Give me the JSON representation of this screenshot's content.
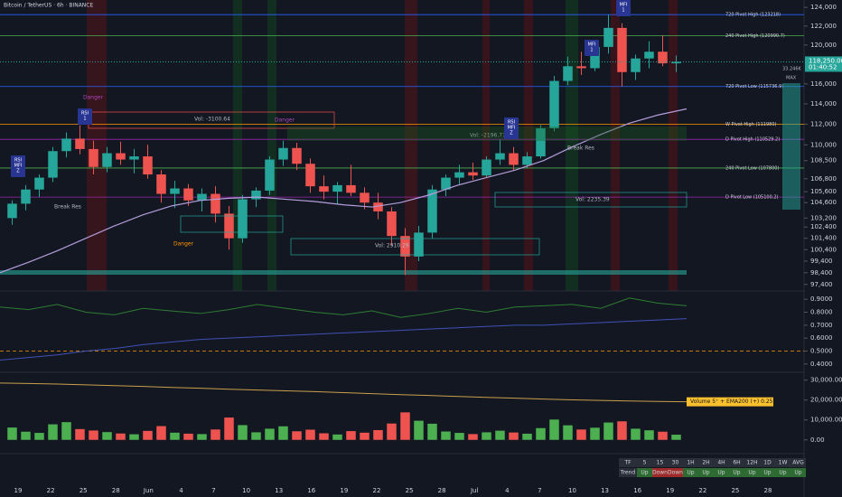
{
  "chart_data": {
    "type": "candlestick",
    "title": "Bitcoin / TetherUS · 6h · BINANCE",
    "log_scale": true,
    "ylim": [
      97000,
      124800
    ],
    "yticks": [
      {
        "value": 124000,
        "label": "124,000"
      },
      {
        "value": 122000,
        "label": "122,000"
      },
      {
        "value": 120000,
        "label": "120,000"
      },
      {
        "value": 116000,
        "label": "116,000"
      },
      {
        "value": 114000,
        "label": "114,000"
      },
      {
        "value": 112000,
        "label": "112,000"
      },
      {
        "value": 110000,
        "label": "110,000"
      },
      {
        "value": 108500,
        "label": "108,500"
      },
      {
        "value": 106800,
        "label": "106,800"
      },
      {
        "value": 105600,
        "label": "105,600"
      },
      {
        "value": 104600,
        "label": "104,600"
      },
      {
        "value": 103200,
        "label": "103,200"
      },
      {
        "value": 102400,
        "label": "102,400"
      },
      {
        "value": 101400,
        "label": "101,400"
      },
      {
        "value": 100400,
        "label": "100,400"
      },
      {
        "value": 99400,
        "label": "99,400"
      },
      {
        "value": 98400,
        "label": "98,400"
      },
      {
        "value": 97400,
        "label": "97,400"
      }
    ],
    "up_color": "#26a69a",
    "down_color": "#ef5350",
    "candles": [
      [
        103200,
        104800,
        102600,
        104500
      ],
      [
        104500,
        106200,
        103900,
        105800
      ],
      [
        105800,
        107200,
        105100,
        106900
      ],
      [
        106900,
        109800,
        106500,
        109400
      ],
      [
        109400,
        111200,
        108800,
        110600
      ],
      [
        110600,
        111900,
        109100,
        109600
      ],
      [
        109600,
        110400,
        107200,
        107900
      ],
      [
        107900,
        109800,
        107400,
        109200
      ],
      [
        109200,
        110300,
        108100,
        108600
      ],
      [
        108600,
        109600,
        107300,
        108900
      ],
      [
        108900,
        110000,
        106800,
        107200
      ],
      [
        107200,
        107600,
        104600,
        105400
      ],
      [
        105400,
        106600,
        104100,
        105900
      ],
      [
        105900,
        106300,
        104300,
        104800
      ],
      [
        104800,
        105900,
        103800,
        105400
      ],
      [
        105400,
        106100,
        102800,
        103600
      ],
      [
        103600,
        104300,
        100400,
        101400
      ],
      [
        101400,
        105300,
        101000,
        104900
      ],
      [
        104900,
        106000,
        104200,
        105700
      ],
      [
        105700,
        108900,
        105300,
        108600
      ],
      [
        108600,
        110400,
        108000,
        109700
      ],
      [
        109700,
        110200,
        107600,
        108200
      ],
      [
        108200,
        108700,
        105500,
        106100
      ],
      [
        106100,
        107100,
        104900,
        105600
      ],
      [
        105600,
        106500,
        104500,
        106200
      ],
      [
        106200,
        108100,
        105200,
        105500
      ],
      [
        105500,
        106000,
        104000,
        104600
      ],
      [
        104600,
        105500,
        103100,
        103800
      ],
      [
        103800,
        104200,
        100800,
        101600
      ],
      [
        101600,
        102300,
        98200,
        99800
      ],
      [
        99800,
        102500,
        99400,
        101900
      ],
      [
        101900,
        106200,
        101400,
        105800
      ],
      [
        105800,
        107200,
        105200,
        106900
      ],
      [
        106900,
        108100,
        106300,
        107400
      ],
      [
        107400,
        108300,
        106700,
        107100
      ],
      [
        107100,
        108900,
        106900,
        108600
      ],
      [
        108600,
        110500,
        108100,
        109200
      ],
      [
        109200,
        109800,
        107600,
        108100
      ],
      [
        108100,
        109300,
        107800,
        108900
      ],
      [
        108900,
        111900,
        108700,
        111600
      ],
      [
        111600,
        116800,
        111300,
        116300
      ],
      [
        116300,
        118800,
        115900,
        117800
      ],
      [
        117800,
        119300,
        116900,
        117600
      ],
      [
        117600,
        120500,
        117300,
        119800
      ],
      [
        119800,
        123218,
        119100,
        121800
      ],
      [
        121800,
        122300,
        115736,
        117200
      ],
      [
        117200,
        119000,
        116400,
        118600
      ],
      [
        118600,
        120400,
        117600,
        119300
      ],
      [
        119300,
        120990,
        117800,
        118100
      ],
      [
        118100,
        118900,
        117200,
        118250
      ]
    ],
    "overlay_line": {
      "color": "#b39ddb",
      "values": [
        98400,
        99300,
        100300,
        101400,
        102500,
        103500,
        104300,
        104800,
        105000,
        105100,
        104900,
        104700,
        104400,
        104200,
        104600,
        105300,
        106200,
        106900,
        107600,
        108500,
        109800,
        111000,
        112100,
        112900,
        113500
      ]
    },
    "levels": [
      {
        "label": "720 Pivot High (123218)",
        "value": 123218,
        "color": "#2962ff"
      },
      {
        "label": "240 Pivot High (120990.7)",
        "value": 120990.7,
        "color": "#4caf50"
      },
      {
        "label": "720 Pivot Low (115736.9)",
        "value": 115736.9,
        "color": "#2962ff"
      },
      {
        "label": "W Pivot High (111980)",
        "value": 111980,
        "color": "#ff9800"
      },
      {
        "label": "D Pivot High (110529.2)",
        "value": 110529.2,
        "color": "#9c27b0"
      },
      {
        "label": "240 Pivot Low (107800)",
        "value": 107800,
        "color": "#4caf50"
      },
      {
        "label": "D Pivot Low (105100.2)",
        "value": 105100.2,
        "color": "#9c27b0"
      }
    ],
    "last_price": {
      "value": 118250,
      "label": "118,250.00"
    },
    "countdown": "01:40:52",
    "side_labels": [
      "33.246K",
      "MAX"
    ],
    "annotations": [
      "Danger",
      "Danger",
      "Danger",
      "Vol: -3100.64",
      "Vol: -2196.77",
      "Vol: 2235.39",
      "Vol: 2910.29",
      "Break Res",
      "Break Res"
    ],
    "badges": [
      [
        "RSI",
        "MFI",
        "Z"
      ],
      [
        "RSI",
        "1"
      ],
      [
        "RSI",
        "MFI",
        "Z"
      ],
      [
        "MFI",
        "1"
      ],
      [
        "MFI",
        "1"
      ]
    ],
    "oscillator": {
      "ylim": [
        0.35,
        0.95
      ],
      "yticks": [
        {
          "value": 0.9,
          "label": "0.9000"
        },
        {
          "value": 0.8,
          "label": "0.8000"
        },
        {
          "value": 0.7,
          "label": "0.7000"
        },
        {
          "value": 0.6,
          "label": "0.6000"
        },
        {
          "value": 0.5,
          "label": "0.5000"
        },
        {
          "value": 0.4,
          "label": "0.4000"
        }
      ],
      "series": [
        {
          "color": "#2e7d32",
          "values": [
            0.84,
            0.82,
            0.86,
            0.8,
            0.78,
            0.83,
            0.81,
            0.79,
            0.82,
            0.86,
            0.83,
            0.8,
            0.78,
            0.81,
            0.76,
            0.79,
            0.83,
            0.8,
            0.84,
            0.85,
            0.86,
            0.83,
            0.91,
            0.87,
            0.85
          ]
        },
        {
          "color": "#3f51b5",
          "values": [
            0.43,
            0.45,
            0.47,
            0.5,
            0.52,
            0.55,
            0.57,
            0.59,
            0.6,
            0.61,
            0.62,
            0.63,
            0.64,
            0.65,
            0.66,
            0.67,
            0.68,
            0.69,
            0.7,
            0.7,
            0.71,
            0.72,
            0.73,
            0.74,
            0.75
          ]
        }
      ]
    },
    "volume": {
      "label": "Volume 5⁺ + EMA200 (+) 0.25%",
      "ylim": [
        -6000,
        33000
      ],
      "yticks": [
        {
          "value": 30000,
          "label": "30,000.00"
        },
        {
          "value": 20000,
          "label": "20,000.00"
        },
        {
          "value": 10000,
          "label": "10,000.00"
        },
        {
          "value": 0,
          "label": "0.00"
        }
      ],
      "values": [
        6200,
        4100,
        3500,
        7800,
        8900,
        5400,
        4700,
        3900,
        3200,
        2800,
        4500,
        6900,
        3600,
        3100,
        2900,
        5200,
        11200,
        7400,
        3800,
        5600,
        6800,
        4300,
        5100,
        3300,
        2700,
        4400,
        3600,
        4900,
        8200,
        13800,
        9600,
        8100,
        4200,
        3500,
        2900,
        3800,
        4600,
        3700,
        3100,
        5900,
        10200,
        7300,
        5200,
        6100,
        8700,
        9300,
        5600,
        4800,
        4100,
        2600
      ],
      "ema": {
        "color": "#c8a04a",
        "values": [
          28500,
          28300,
          28000,
          27600,
          27200,
          26800,
          26300,
          25900,
          25400,
          25000,
          24600,
          24200,
          23700,
          23200,
          22700,
          22300,
          21800,
          21300,
          20900,
          20500,
          20100,
          19800,
          19500,
          19300,
          19100
        ]
      }
    },
    "time_labels": [
      "19",
      "22",
      "25",
      "28",
      "Jun",
      "4",
      "7",
      "10",
      "13",
      "16",
      "19",
      "22",
      "25",
      "28",
      "Jul",
      "4",
      "7",
      "10",
      "13",
      "16",
      "19",
      "22",
      "25",
      "28"
    ],
    "trend_table": {
      "header": [
        "TF",
        "5",
        "15",
        "30",
        "1H",
        "2H",
        "4H",
        "6H",
        "12H",
        "1D",
        "1W",
        "AVG"
      ],
      "row": [
        "Trend",
        "Up",
        "Down",
        "Down",
        "Up",
        "Up",
        "Up",
        "Up",
        "Up",
        "Up",
        "Up",
        "Up"
      ],
      "row_colors": [
        "#2a2e39",
        "#2e6b32",
        "#9e2a2a",
        "#9e2a2a",
        "#2e6b32",
        "#2e6b32",
        "#2e6b32",
        "#2e6b32",
        "#2e6b32",
        "#2e6b32",
        "#2e6b32",
        "#2e6b32"
      ]
    }
  }
}
